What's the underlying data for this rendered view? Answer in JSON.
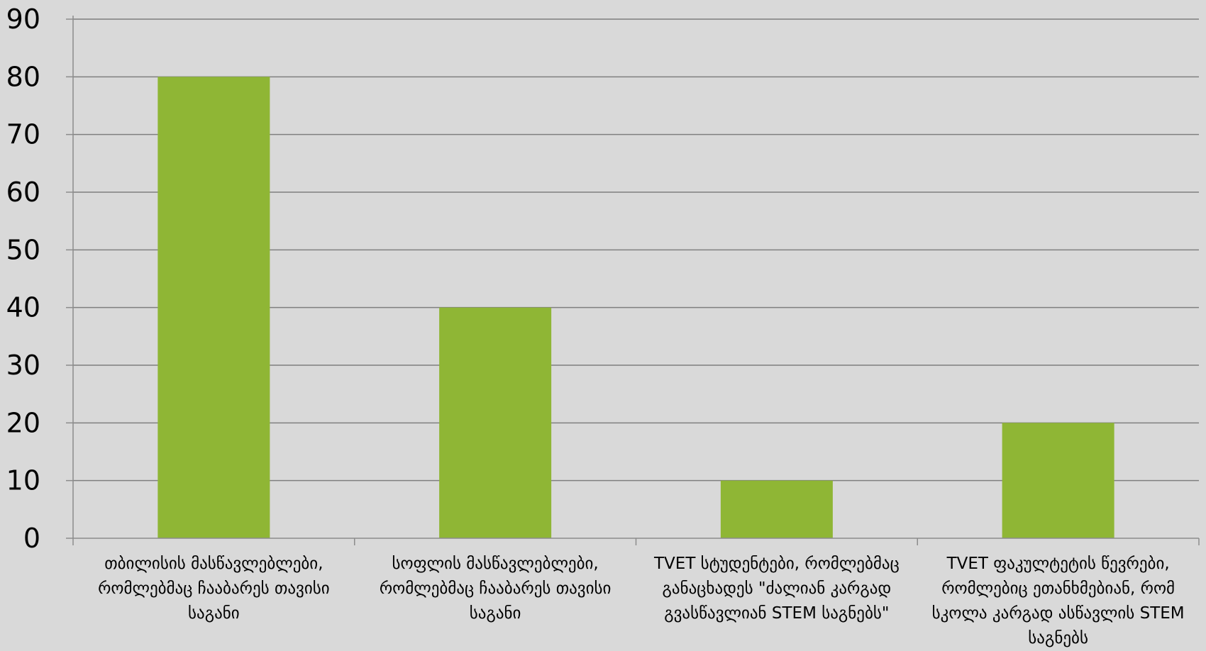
{
  "chart_data": {
    "type": "bar",
    "title": "",
    "xlabel": "",
    "ylabel": "",
    "ylim": [
      0,
      90
    ],
    "yticks": [
      "0",
      "10",
      "20",
      "30",
      "40",
      "50",
      "60",
      "70",
      "80",
      "90"
    ],
    "grid": true,
    "legend": "none",
    "categories": [
      "თბილისის მასწავლებლები, რომლებმაც ჩააბარეს თავისი საგანი",
      "სოფლის მასწავლებლები, რომლებმაც ჩააბარეს თავისი საგანი",
      "TVET სტუდენტები, რომლებმაც განაცხადეს \"ძალიან კარგად გვასწავლიან STEM საგნებს\"",
      "TVET ფაკულტეტის წევრები, რომლებიც ეთანხმებიან, რომ სკოლა კარგად ასწავლის STEM საგნებს"
    ],
    "values": [
      80,
      40,
      10,
      20
    ],
    "colors": {
      "background": "#d9d9d9",
      "bar": "#8fb635",
      "grid": "#7f7f7f",
      "axis": "#8c8c8c"
    }
  }
}
